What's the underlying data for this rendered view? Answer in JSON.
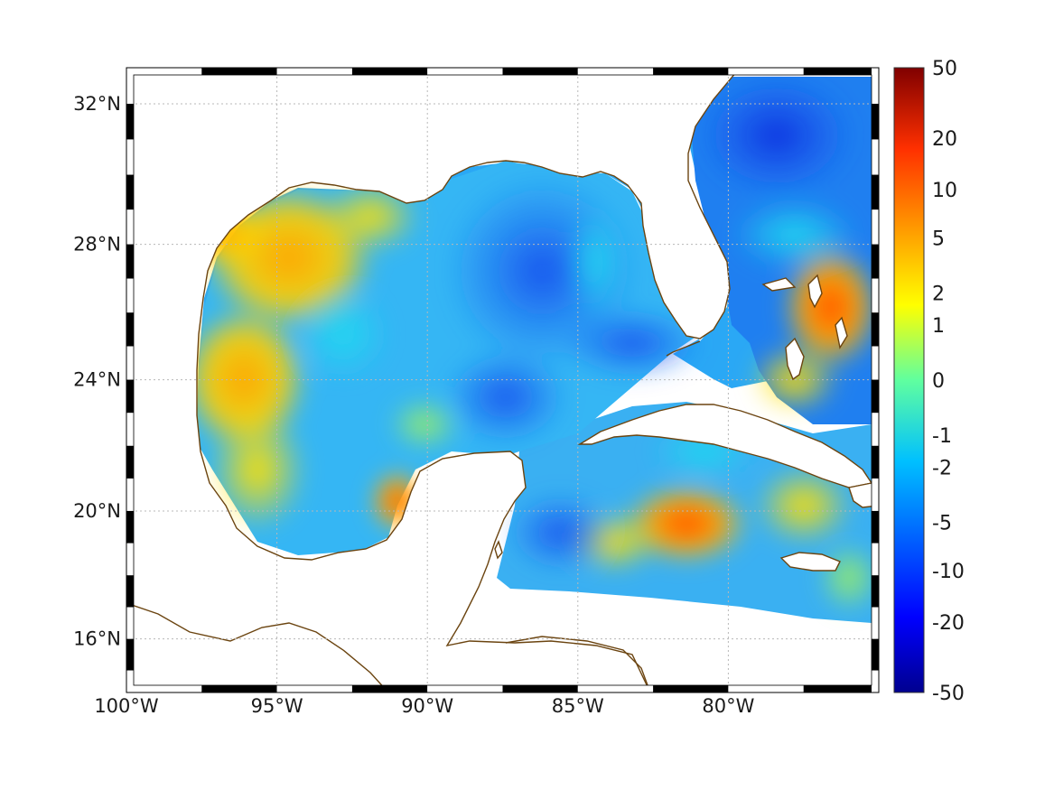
{
  "map": {
    "projection": "Mercator",
    "region": "Gulf of Mexico and Caribbean",
    "lon_range": [
      -100,
      -75
    ],
    "lat_range": [
      14.3,
      33
    ],
    "grid": true,
    "land_color": "#ffffff",
    "coastline_color": "#6b4410",
    "frame_colors": [
      "#000000",
      "#ffffff"
    ],
    "x_ticks": [
      {
        "lon": -100,
        "label": "100°W"
      },
      {
        "lon": -95,
        "label": "95°W"
      },
      {
        "lon": -90,
        "label": "90°W"
      },
      {
        "lon": -85,
        "label": "85°W"
      },
      {
        "lon": -80,
        "label": "80°W"
      }
    ],
    "y_ticks": [
      {
        "lat": 32,
        "label": "32°N"
      },
      {
        "lat": 28,
        "label": "28°N"
      },
      {
        "lat": 24,
        "label": "24°N"
      },
      {
        "lat": 20,
        "label": "20°N"
      },
      {
        "lat": 16,
        "label": "16°N"
      }
    ]
  },
  "colorbar": {
    "colormap": "jet",
    "scale": "symmetric-log",
    "range": [
      -50,
      50
    ],
    "ticks": [
      {
        "value": 50,
        "label": "50"
      },
      {
        "value": 20,
        "label": "20"
      },
      {
        "value": 10,
        "label": "10"
      },
      {
        "value": 5,
        "label": "5"
      },
      {
        "value": 2,
        "label": "2"
      },
      {
        "value": 1,
        "label": "1"
      },
      {
        "value": 0,
        "label": "0"
      },
      {
        "value": -1,
        "label": "-1"
      },
      {
        "value": -2,
        "label": "-2"
      },
      {
        "value": -5,
        "label": "-5"
      },
      {
        "value": -10,
        "label": "-10"
      },
      {
        "value": -20,
        "label": "-20"
      },
      {
        "value": -50,
        "label": "-50"
      }
    ]
  },
  "field_features": [
    {
      "name": "western-gulf-positive",
      "lon": -94.5,
      "lat": 27.0,
      "value": 3
    },
    {
      "name": "bay-of-campeche-positive",
      "lon": -96.0,
      "lat": 24.0,
      "value": 2
    },
    {
      "name": "campeche-patch",
      "lon": -90.8,
      "lat": 20.0,
      "value": 5
    },
    {
      "name": "eastern-gulf-negative",
      "lon": -86.0,
      "lat": 27.0,
      "value": -5
    },
    {
      "name": "bahamas-max",
      "lon": -76.5,
      "lat": 25.8,
      "value": 6
    },
    {
      "name": "caribbean-positive",
      "lon": -81.5,
      "lat": 19.0,
      "value": 3
    },
    {
      "name": "atlantic-negative",
      "lon": -78.0,
      "lat": 31.0,
      "value": -8
    }
  ]
}
